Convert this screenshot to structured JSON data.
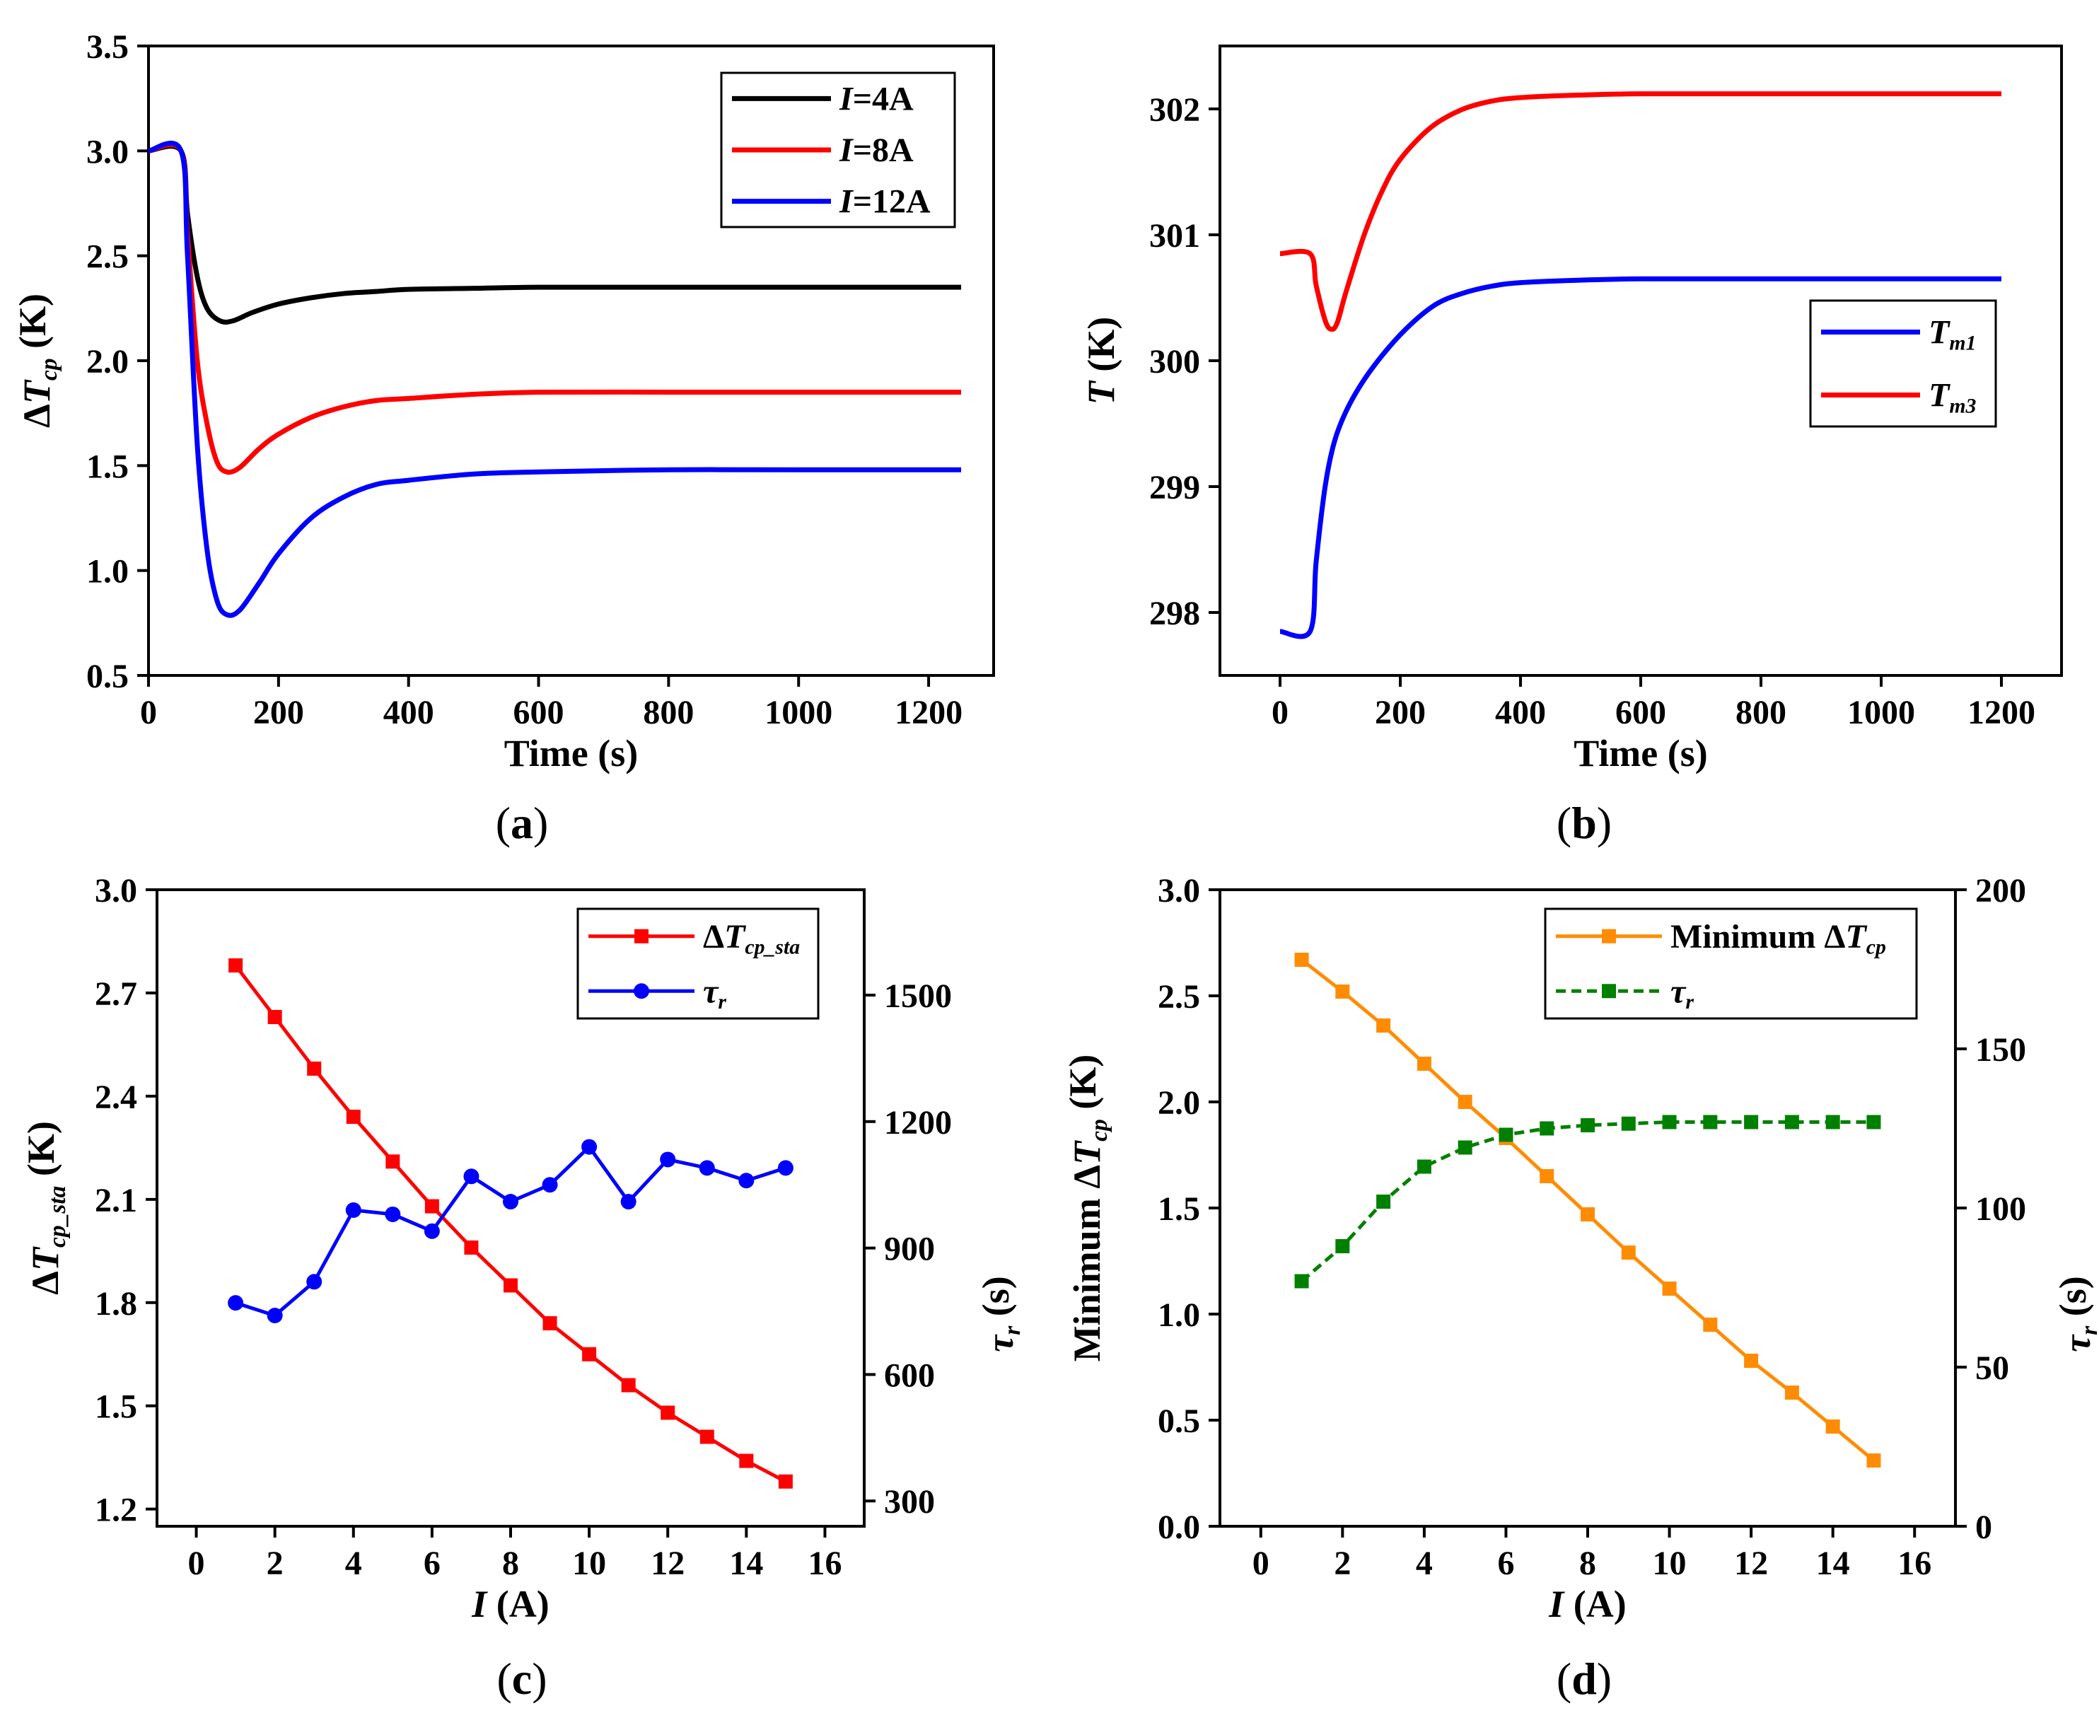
{
  "panels": [
    {
      "id": "a",
      "label": "a"
    },
    {
      "id": "b",
      "label": "b"
    },
    {
      "id": "c",
      "label": "c"
    },
    {
      "id": "d",
      "label": "d"
    }
  ],
  "chart_data": [
    {
      "panel": "a",
      "type": "line",
      "xlabel": "Time (s)",
      "ylabel": "ΔT_cp (K)",
      "xlim": [
        0,
        1300
      ],
      "ylim": [
        0.5,
        3.5
      ],
      "xticks": [
        0,
        200,
        400,
        600,
        800,
        1000,
        1200
      ],
      "yticks": [
        0.5,
        1.0,
        1.5,
        2.0,
        2.5,
        3.0,
        3.5
      ],
      "legend": "top-right",
      "series": [
        {
          "name": "I=4A",
          "color": "#000000",
          "x": [
            0,
            50,
            60,
            75,
            90,
            110,
            130,
            160,
            200,
            250,
            300,
            350,
            400,
            500,
            600,
            800,
            1000,
            1250
          ],
          "y": [
            3.0,
            3.0,
            2.7,
            2.4,
            2.25,
            2.19,
            2.19,
            2.23,
            2.27,
            2.3,
            2.32,
            2.33,
            2.34,
            2.345,
            2.35,
            2.35,
            2.35,
            2.35
          ]
        },
        {
          "name": "I=8A",
          "color": "#ff0000",
          "x": [
            0,
            50,
            60,
            75,
            90,
            105,
            120,
            140,
            170,
            200,
            250,
            300,
            350,
            400,
            500,
            600,
            800,
            1000,
            1250
          ],
          "y": [
            3.0,
            3.0,
            2.6,
            2.0,
            1.7,
            1.52,
            1.47,
            1.49,
            1.58,
            1.65,
            1.73,
            1.78,
            1.81,
            1.82,
            1.84,
            1.85,
            1.85,
            1.85,
            1.85
          ]
        },
        {
          "name": "I=12A",
          "color": "#0000ff",
          "x": [
            0,
            50,
            60,
            75,
            90,
            105,
            120,
            140,
            170,
            200,
            250,
            300,
            350,
            400,
            500,
            600,
            800,
            1000,
            1250
          ],
          "y": [
            3.0,
            3.0,
            2.5,
            1.6,
            1.1,
            0.86,
            0.79,
            0.81,
            0.94,
            1.08,
            1.25,
            1.35,
            1.41,
            1.43,
            1.46,
            1.47,
            1.48,
            1.48,
            1.48
          ]
        }
      ]
    },
    {
      "panel": "b",
      "type": "line",
      "xlabel": "Time (s)",
      "ylabel": "T (K)",
      "xlim": [
        -100,
        1300
      ],
      "ylim": [
        297.5,
        302.5
      ],
      "xticks": [
        0,
        200,
        400,
        600,
        800,
        1000,
        1200
      ],
      "yticks": [
        298,
        299,
        300,
        301,
        302
      ],
      "legend": "right",
      "series": [
        {
          "name": "T_m1",
          "color": "#0000ff",
          "x": [
            0,
            50,
            60,
            75,
            90,
            110,
            140,
            180,
            220,
            260,
            300,
            350,
            400,
            500,
            600,
            800,
            1000,
            1200
          ],
          "y": [
            297.85,
            297.85,
            298.4,
            299.0,
            299.35,
            299.6,
            299.85,
            300.1,
            300.3,
            300.45,
            300.53,
            300.59,
            300.62,
            300.64,
            300.65,
            300.65,
            300.65,
            300.65
          ]
        },
        {
          "name": "T_m3",
          "color": "#ff0000",
          "x": [
            0,
            50,
            60,
            75,
            85,
            95,
            110,
            140,
            170,
            200,
            250,
            300,
            350,
            400,
            500,
            600,
            800,
            1000,
            1200
          ],
          "y": [
            300.85,
            300.85,
            300.6,
            300.32,
            300.25,
            300.3,
            300.55,
            301.0,
            301.35,
            301.6,
            301.85,
            301.99,
            302.06,
            302.09,
            302.11,
            302.12,
            302.12,
            302.12,
            302.12
          ]
        }
      ]
    },
    {
      "panel": "c",
      "type": "line",
      "xlabel": "I (A)",
      "ylabel": "ΔT_cp_sta (K)",
      "ylabel_right": "τ_r (s)",
      "xlim": [
        -1,
        17
      ],
      "ylim": [
        1.15,
        3.0
      ],
      "ylim_right": [
        240,
        1750
      ],
      "xticks": [
        0,
        2,
        4,
        6,
        8,
        10,
        12,
        14,
        16
      ],
      "yticks": [
        1.2,
        1.5,
        1.8,
        2.1,
        2.4,
        2.7,
        3.0
      ],
      "yticks_right": [
        300,
        600,
        900,
        1200,
        1500
      ],
      "legend": "top-right",
      "series": [
        {
          "name": "ΔT_cp_sta",
          "color": "#ff0000",
          "marker": "square",
          "axis": "left",
          "x": [
            1,
            2,
            3,
            4,
            5,
            6,
            7,
            8,
            9,
            10,
            11,
            12,
            13,
            14,
            15
          ],
          "y": [
            2.78,
            2.63,
            2.48,
            2.34,
            2.21,
            2.08,
            1.96,
            1.85,
            1.74,
            1.65,
            1.56,
            1.48,
            1.41,
            1.34,
            1.28
          ]
        },
        {
          "name": "τ_r",
          "color": "#0000ff",
          "marker": "circle",
          "axis": "right",
          "x": [
            1,
            2,
            3,
            4,
            5,
            6,
            7,
            8,
            9,
            10,
            11,
            12,
            13,
            14,
            15
          ],
          "y": [
            770,
            740,
            820,
            990,
            980,
            940,
            1070,
            1010,
            1050,
            1140,
            1010,
            1110,
            1090,
            1060,
            1090
          ]
        }
      ]
    },
    {
      "panel": "d",
      "type": "line",
      "xlabel": "I (A)",
      "ylabel": "Minimum ΔT_cp (K)",
      "ylabel_right": "τ_r (s)",
      "xlim": [
        -1,
        17
      ],
      "ylim": [
        0.0,
        3.0
      ],
      "ylim_right": [
        0,
        200
      ],
      "xticks": [
        0,
        2,
        4,
        6,
        8,
        10,
        12,
        14,
        16
      ],
      "yticks": [
        0.0,
        0.5,
        1.0,
        1.5,
        2.0,
        2.5,
        3.0
      ],
      "yticks_right": [
        0,
        50,
        100,
        150,
        200
      ],
      "legend": "top-right",
      "series": [
        {
          "name": "Minimum ΔT_cp",
          "color": "#ff8c00",
          "marker": "square",
          "axis": "left",
          "x": [
            1,
            2,
            3,
            4,
            5,
            6,
            7,
            8,
            9,
            10,
            11,
            12,
            13,
            14,
            15
          ],
          "y": [
            2.67,
            2.52,
            2.36,
            2.18,
            2.0,
            1.83,
            1.65,
            1.47,
            1.29,
            1.12,
            0.95,
            0.78,
            0.63,
            0.47,
            0.31
          ]
        },
        {
          "name": "τ_r",
          "color": "#008000",
          "marker": "square",
          "axis": "right",
          "dash": true,
          "x": [
            1,
            2,
            3,
            4,
            5,
            6,
            7,
            8,
            9,
            10,
            11,
            12,
            13,
            14,
            15
          ],
          "y": [
            77,
            88,
            102,
            113,
            119,
            123,
            125,
            126,
            126.5,
            127,
            127,
            127,
            127,
            127,
            127
          ]
        }
      ]
    }
  ]
}
